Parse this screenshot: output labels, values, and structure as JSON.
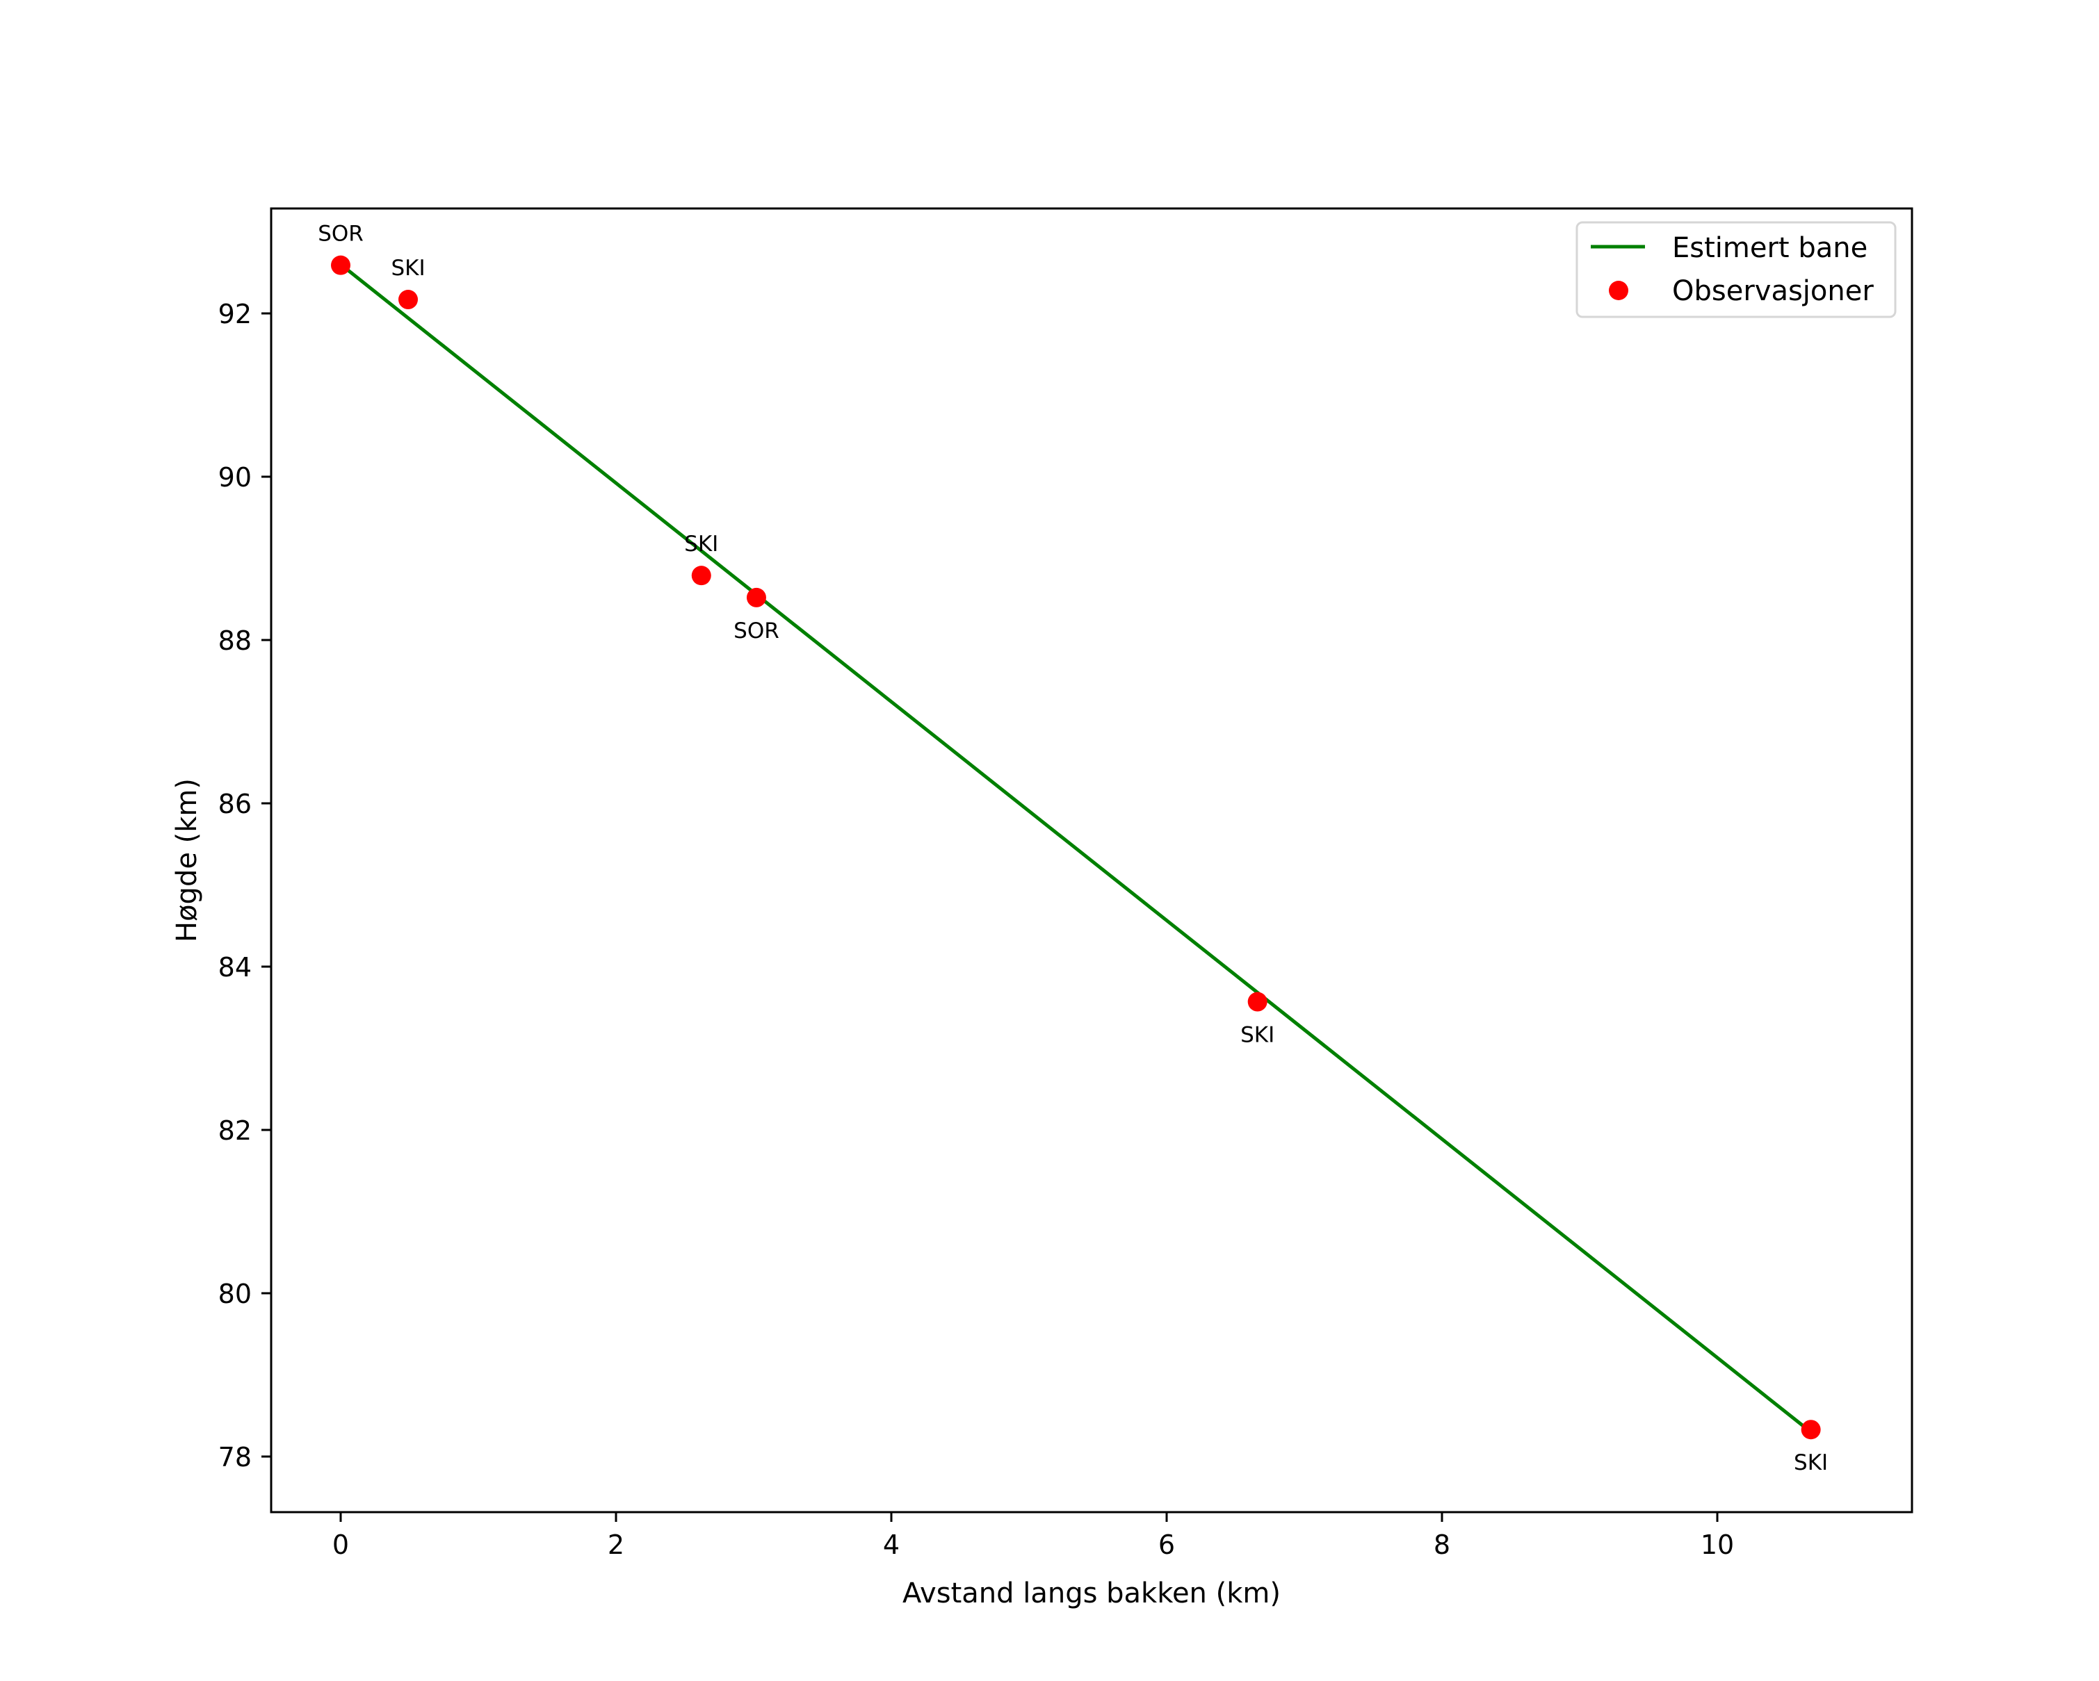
{
  "chart_data": {
    "type": "line",
    "title": "",
    "xlabel": "Avstand langs bakken (km)",
    "ylabel": "Høgde (km)",
    "xlim": [
      -1.07,
      11.2
    ],
    "ylim": [
      77.6,
      93.3
    ],
    "xticks": [
      0,
      2,
      4,
      6,
      8,
      10
    ],
    "yticks": [
      78,
      80,
      82,
      84,
      86,
      88,
      90,
      92
    ],
    "grid": false,
    "legend_position": "upper right",
    "series": [
      {
        "name": "Estimert bane",
        "type": "line",
        "color": "#008000",
        "x": [
          0,
          10.68
        ],
        "y": [
          92.6,
          78.3
        ]
      },
      {
        "name": "Observasjoner",
        "type": "scatter",
        "color": "#ff0000",
        "x": [
          0,
          0.49,
          2.62,
          3.02,
          6.66,
          10.68
        ],
        "y": [
          92.59,
          92.17,
          88.79,
          88.52,
          83.57,
          78.33
        ],
        "labels": [
          "SOR",
          "SKI",
          "SKI",
          "SOR",
          "SKI",
          "SKI"
        ],
        "label_pos": [
          "above",
          "above",
          "above",
          "below",
          "below",
          "below"
        ]
      }
    ]
  },
  "legend": {
    "line_label": "Estimert bane",
    "points_label": "Observasjoner"
  }
}
